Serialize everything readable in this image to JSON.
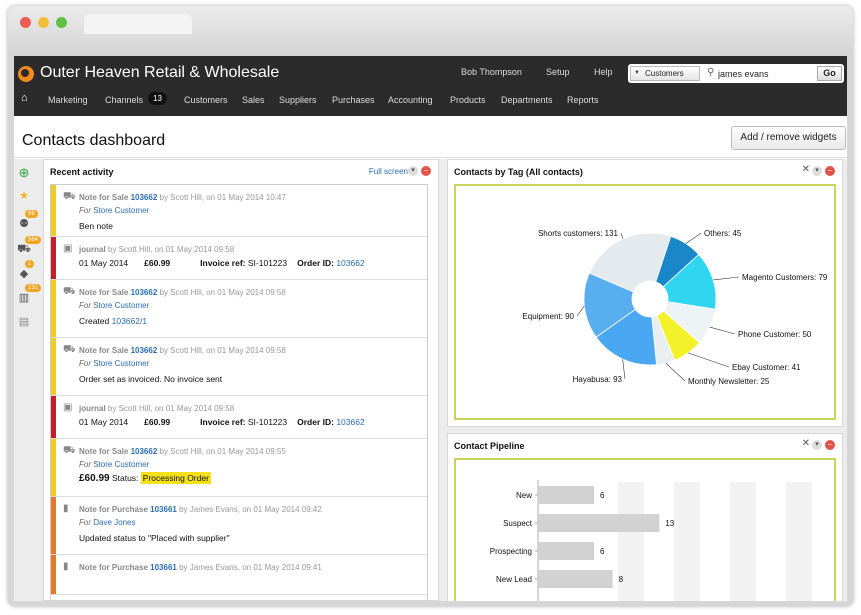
{
  "app": {
    "company": "Outer Heaven Retail & Wholesale",
    "top_links": [
      "Bob Thompson",
      "Setup",
      "Help"
    ],
    "search": {
      "scope": "Customers",
      "value": "james evans",
      "go_label": "Go"
    }
  },
  "menu": {
    "items": [
      "Marketing",
      "Channels",
      "Customers",
      "Sales",
      "Suppliers",
      "Purchases",
      "Accounting",
      "Products",
      "Departments",
      "Reports"
    ],
    "channels_badge": "13"
  },
  "page": {
    "title": "Contacts dashboard",
    "widget_button": "Add / remove widgets"
  },
  "sidebar": {
    "badges": [
      "66",
      "964",
      "1",
      "231"
    ]
  },
  "recent": {
    "title": "Recent activity",
    "fullscreen": "Full screen",
    "items": [
      {
        "kind": "sale",
        "color": "#f0cc24",
        "type": "Note for Sale",
        "ref": "103662",
        "meta": "by Scott Hill, on 01 May 2014 10:47",
        "for_label": "For",
        "for": "Store Customer",
        "text": "Ben note"
      },
      {
        "kind": "journal",
        "color": "#c0202a",
        "type": "journal",
        "meta": "by Scott Hill, on 01 May 2014 09:58",
        "date": "01 May 2014",
        "amount": "£60.99",
        "invoice_label": "Invoice ref:",
        "invoice": "SI-101223",
        "order_label": "Order ID:",
        "order": "103662"
      },
      {
        "kind": "sale",
        "color": "#f0cc24",
        "type": "Note for Sale",
        "ref": "103662",
        "meta": "by Scott Hill, on 01 May 2014 09:58",
        "for_label": "For",
        "for": "Store Customer",
        "text": "Created",
        "text_link": "103662/1"
      },
      {
        "kind": "sale",
        "color": "#f0cc24",
        "type": "Note for Sale",
        "ref": "103662",
        "meta": "by Scott Hill, on 01 May 2014 09:58",
        "for_label": "For",
        "for": "Store Customer",
        "text": "Order set as invoiced. No invoice sent"
      },
      {
        "kind": "journal",
        "color": "#c0202a",
        "type": "journal",
        "meta": "by Scott Hill, on 01 May 2014 09:58",
        "date": "01 May 2014",
        "amount": "£60.99",
        "invoice_label": "Invoice ref:",
        "invoice": "SI-101223",
        "order_label": "Order ID:",
        "order": "103662"
      },
      {
        "kind": "sale",
        "color": "#f0cc24",
        "type": "Note for Sale",
        "ref": "103662",
        "meta": "by Scott Hill, on 01 May 2014 09:55",
        "for_label": "For",
        "for": "Store Customer",
        "amount": "£60.99",
        "status_label": "Status:",
        "status": "Processing Order"
      },
      {
        "kind": "purchase",
        "color": "#e07b2a",
        "type": "Note for Purchase",
        "ref": "103661",
        "meta": "by James Evans, on 01 May 2014 09:42",
        "for_label": "For",
        "for": "Dave Jones",
        "text": "Updated status to \"Placed with supplier\""
      },
      {
        "kind": "purchase",
        "color": "#e07b2a",
        "type": "Note for Purchase",
        "ref": "103661",
        "meta": "by James Evans, on 01 May 2014 09:41"
      }
    ]
  },
  "tags_panel": {
    "title": "Contacts by Tag (All contacts)"
  },
  "pipeline_panel": {
    "title": "Contact Pipeline"
  },
  "chart_data": [
    {
      "type": "pie",
      "title": "Contacts by Tag (All contacts)",
      "categories": [
        "Others",
        "Magento Customers",
        "Phone Customer",
        "Ebay Customer",
        "Monthly Newsletter",
        "Hayabusa",
        "Equipment",
        "Shorts customers"
      ],
      "values": [
        45,
        79,
        50,
        41,
        25,
        93,
        90,
        131
      ],
      "labels": [
        "Others: 45",
        "Magento Customers: 79",
        "Phone Customer: 50",
        "Ebay Customer: 41",
        "Monthly Newsletter: 25",
        "Hayabusa: 93",
        "Equipment: 90",
        "Shorts customers: 131"
      ],
      "colors": [
        "#1a88c8",
        "#30d6f0",
        "#eef3f6",
        "#f2f12a",
        "#e9eef1",
        "#4aa8f2",
        "#59aef0",
        "#e4eaee"
      ]
    },
    {
      "type": "bar",
      "title": "Contact Pipeline",
      "categories": [
        "New",
        "Suspect",
        "Prospecting",
        "New Lead"
      ],
      "values": [
        6,
        13,
        6,
        8
      ],
      "xlim": [
        0,
        30
      ]
    }
  ]
}
